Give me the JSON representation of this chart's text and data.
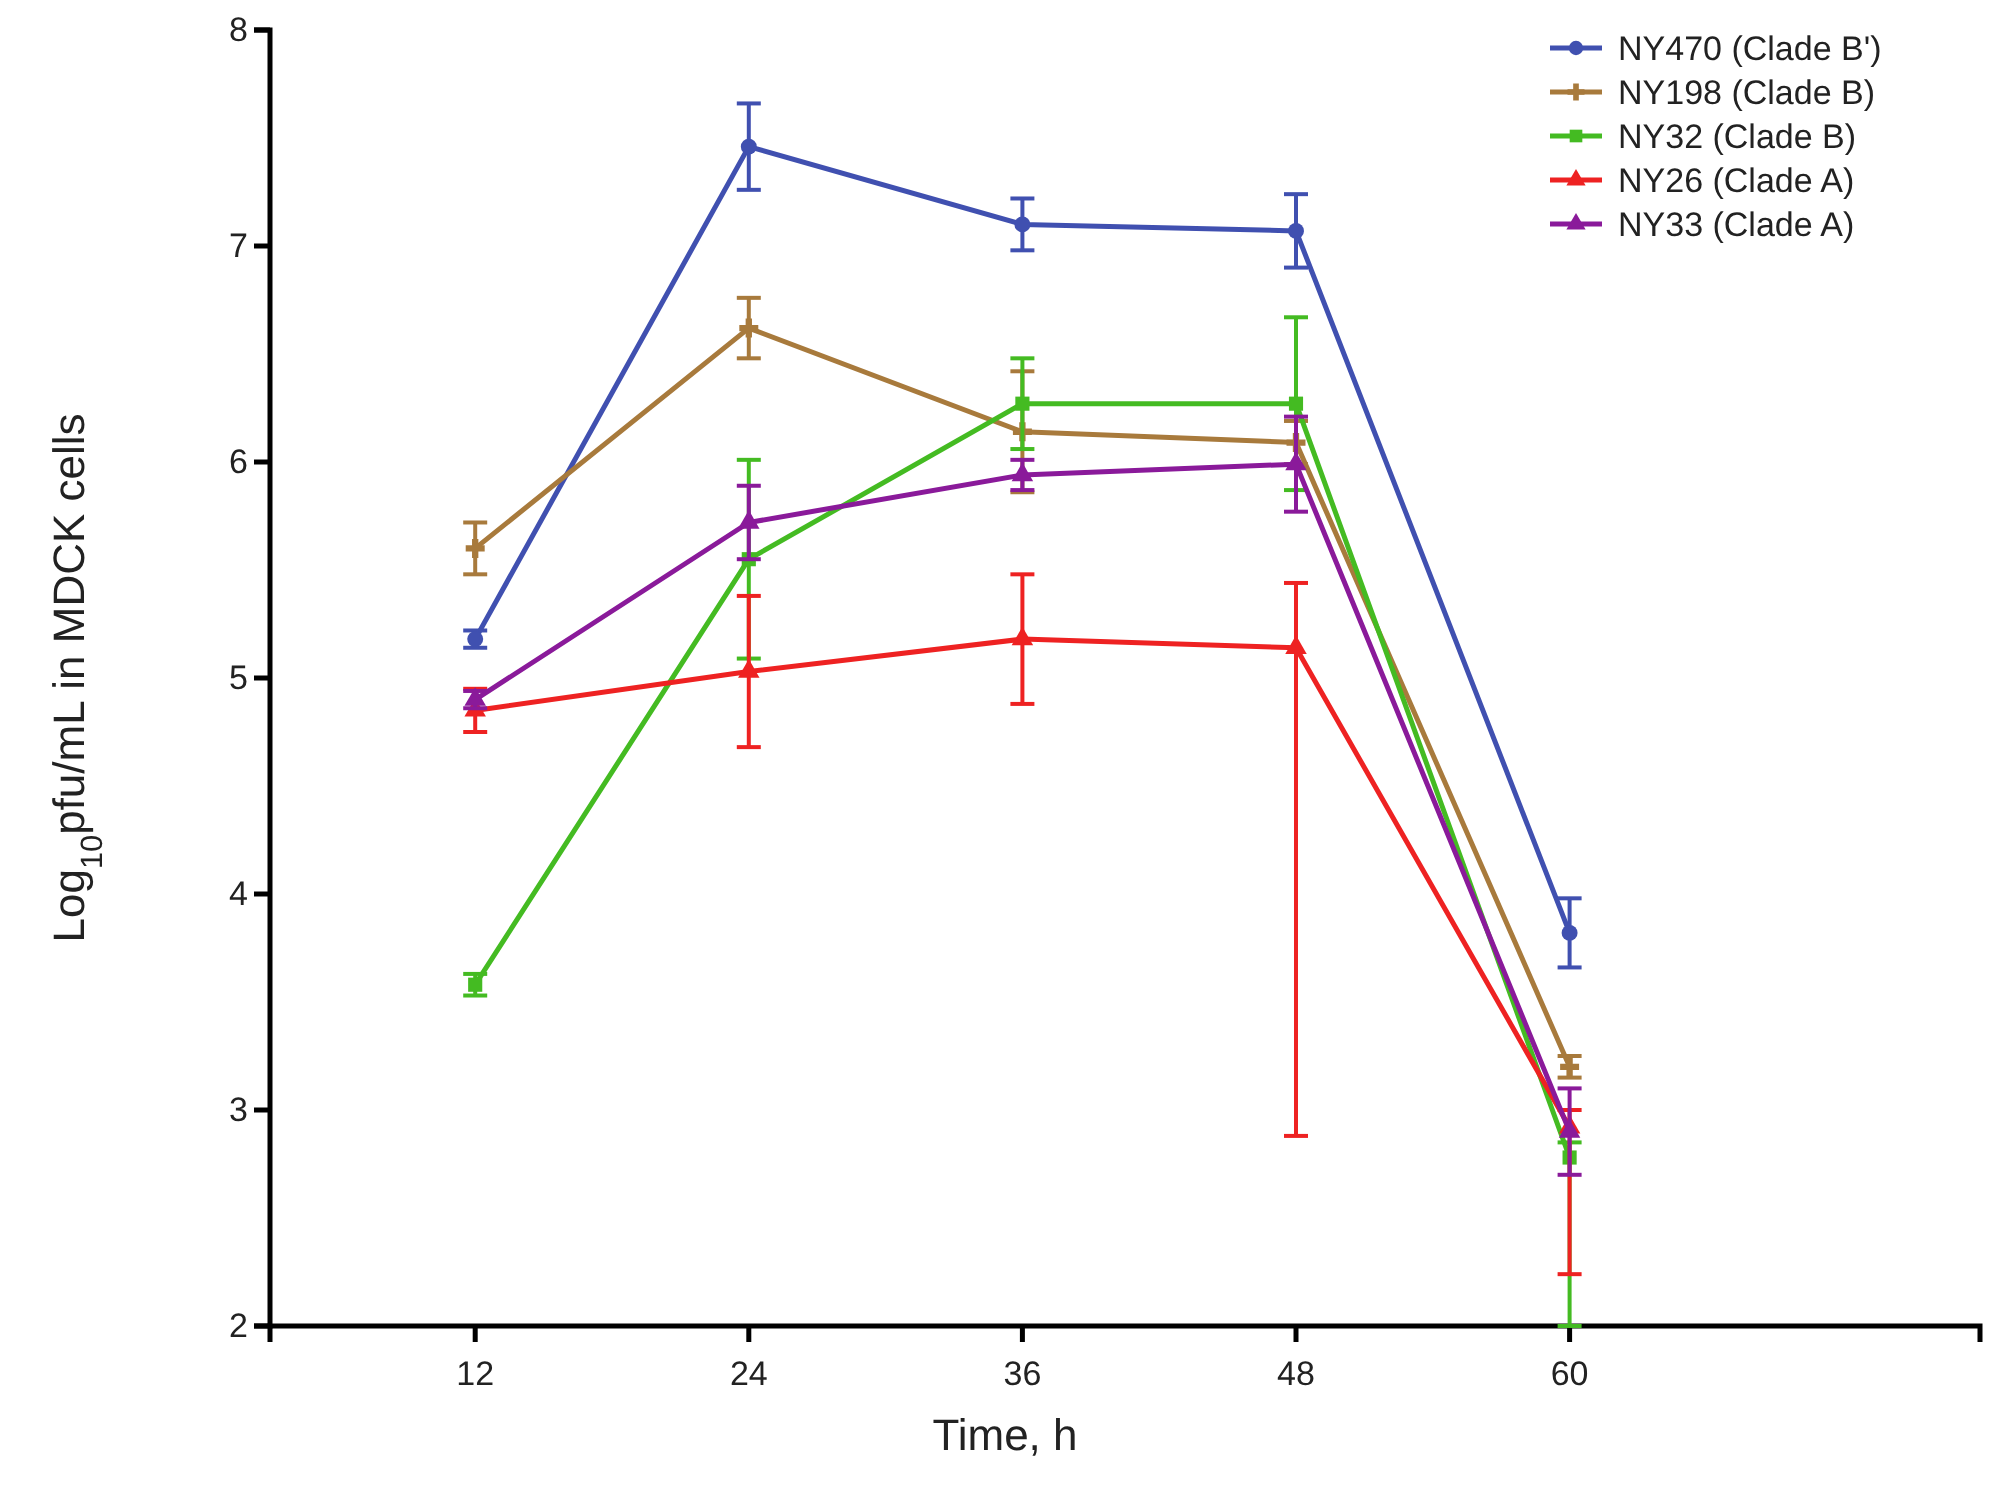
{
  "chart_data": {
    "type": "line",
    "xlabel": "Time, h",
    "ylabel": "Log$_{10}$pfu/mL in MDCK cells",
    "x": [
      12,
      24,
      36,
      48,
      60
    ],
    "xlim": [
      3,
      78
    ],
    "xticks": [
      12,
      24,
      36,
      48,
      60
    ],
    "ylim": [
      2,
      8
    ],
    "yticks": [
      2,
      3,
      4,
      5,
      6,
      7,
      8
    ],
    "grid": false,
    "legend": "top right",
    "line_style": "solid",
    "series": [
      {
        "name": "NY470 (Clade B')",
        "color": "#4050b0",
        "marker": "circle",
        "values": [
          5.18,
          7.46,
          7.1,
          7.07,
          3.82
        ],
        "errors": [
          0.04,
          0.2,
          0.12,
          0.17,
          0.16
        ]
      },
      {
        "name": "NY198 (Clade B)",
        "color": "#a87a3c",
        "marker": "cross",
        "values": [
          5.6,
          6.62,
          6.14,
          6.09,
          3.2
        ],
        "errors": [
          0.12,
          0.14,
          0.28,
          0.1,
          0.05
        ]
      },
      {
        "name": "NY32 (Clade B)",
        "color": "#44bb22",
        "marker": "square",
        "values": [
          3.58,
          5.55,
          6.27,
          6.27,
          2.78
        ],
        "errors": [
          0.05,
          0.46,
          0.21,
          0.4,
          [
            2.0,
            2.85
          ]
        ]
      },
      {
        "name": "NY26 (Clade A)",
        "color": "#ee2222",
        "marker": "triangle",
        "values": [
          4.85,
          5.03,
          5.18,
          5.14,
          2.92
        ],
        "errors": [
          0.1,
          0.35,
          0.3,
          [
            2.88,
            5.44
          ],
          [
            2.24,
            3.0
          ]
        ]
      },
      {
        "name": "NY33 (Clade A)",
        "color": "#8a1a9a",
        "marker": "triangle",
        "values": [
          4.9,
          5.72,
          5.94,
          5.99,
          2.9
        ],
        "errors": [
          0.04,
          0.17,
          0.07,
          0.22,
          0.2
        ]
      }
    ]
  }
}
